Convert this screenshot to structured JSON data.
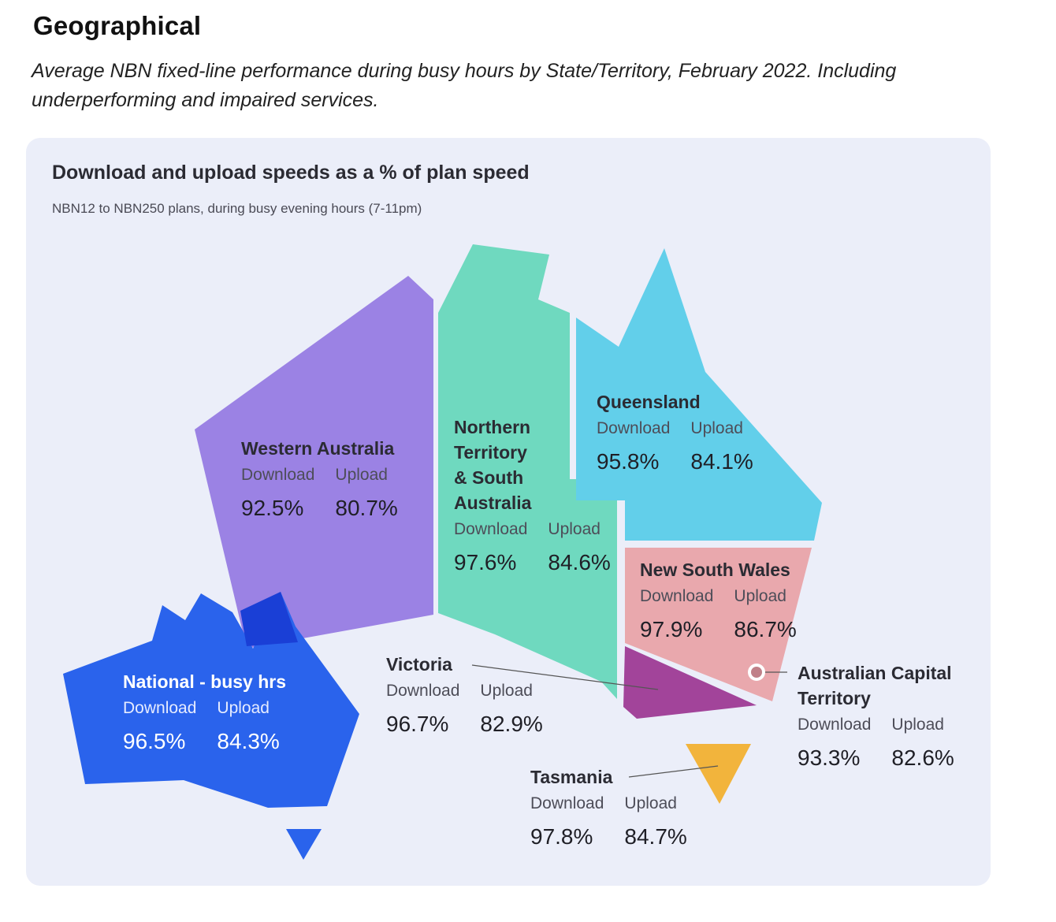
{
  "header": {
    "title": "Geographical",
    "caption": "Average NBN fixed-line performance during busy hours by State/Territory, February 2022. Including underperforming and impaired services."
  },
  "map": {
    "title": "Download and upload speeds as a % of plan speed",
    "subtitle": "NBN12 to NBN250 plans, during busy evening hours (7-11pm)",
    "column_labels": {
      "download": "Download",
      "upload": "Upload"
    },
    "regions": {
      "wa": {
        "name": "Western Australia",
        "download": "92.5%",
        "upload": "80.7%",
        "color": "#9b82e4"
      },
      "nt_sa": {
        "name_lines": [
          "Northern",
          "Territory",
          "& South",
          "Australia"
        ],
        "download": "97.6%",
        "upload": "84.6%",
        "color": "#6fd9bf"
      },
      "qld": {
        "name": "Queensland",
        "download": "95.8%",
        "upload": "84.1%",
        "color": "#62cfea"
      },
      "nsw": {
        "name": "New South Wales",
        "download": "97.9%",
        "upload": "86.7%",
        "color": "#e9a8ad"
      },
      "act": {
        "name_lines": [
          "Australian Capital",
          "Territory"
        ],
        "download": "93.3%",
        "upload": "82.6%",
        "color": "#c08088"
      },
      "vic": {
        "name": "Victoria",
        "download": "96.7%",
        "upload": "82.9%",
        "color": "#a2449a"
      },
      "tas": {
        "name": "Tasmania",
        "download": "97.8%",
        "upload": "84.7%",
        "color": "#f2b43c"
      },
      "national": {
        "name": "National - busy hrs",
        "download": "96.5%",
        "upload": "84.3%",
        "color": "#2a63ec"
      }
    }
  }
}
